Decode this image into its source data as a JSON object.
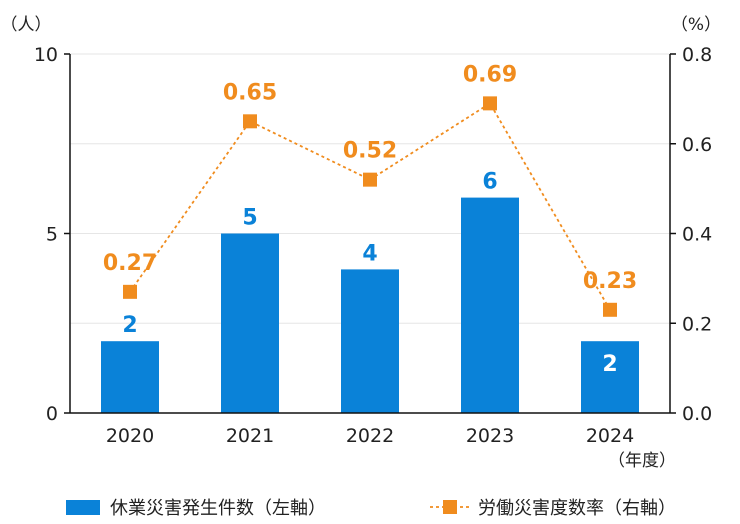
{
  "chart_data": {
    "type": "bar",
    "categories": [
      "2020",
      "2021",
      "2022",
      "2023",
      "2024"
    ],
    "xunit": "（年度）",
    "left_axis": {
      "unit": "（人）",
      "ylim": [
        0,
        10
      ],
      "ticks": [
        "0",
        "5",
        "10"
      ],
      "tick_values": [
        0,
        5,
        10
      ]
    },
    "right_axis": {
      "unit": "（%）",
      "ylim": [
        0,
        0.8
      ],
      "ticks": [
        "0.0",
        "0.2",
        "0.4",
        "0.6",
        "0.8"
      ],
      "tick_values": [
        0,
        0.2,
        0.4,
        0.6,
        0.8
      ]
    },
    "series": [
      {
        "name": "休業災害発生件数（左軸）",
        "kind": "bar",
        "axis": "left",
        "color": "#0a82d8",
        "values": [
          2,
          5,
          4,
          6,
          2
        ],
        "labels": [
          "2",
          "5",
          "4",
          "6",
          "2"
        ]
      },
      {
        "name": "労働災害度数率（右軸）",
        "kind": "line",
        "axis": "right",
        "color": "#f08c1e",
        "line_style": "dashed",
        "marker": "square",
        "values": [
          0.27,
          0.65,
          0.52,
          0.69,
          0.23
        ],
        "labels": [
          "0.27",
          "0.65",
          "0.52",
          "0.69",
          "0.23"
        ]
      }
    ],
    "grid": true,
    "legend": "bottom"
  }
}
